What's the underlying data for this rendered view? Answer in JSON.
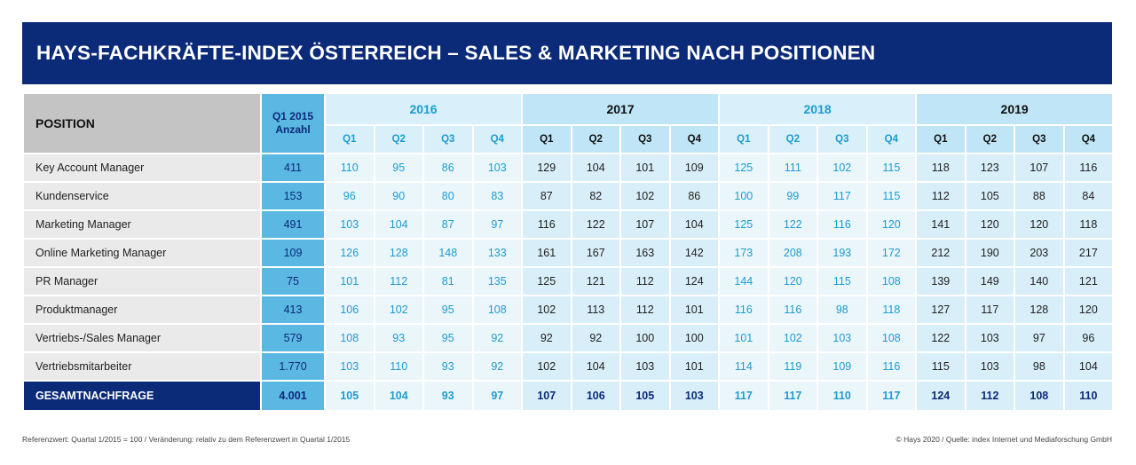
{
  "title": "HAYS-FACHKRÄFTE-INDEX ÖSTERREICH – SALES & MARKETING NACH POSITIONEN",
  "chart_data": {
    "type": "table",
    "header": {
      "position": "POSITION",
      "baseline_line1": "Q1 2015",
      "baseline_line2": "Anzahl",
      "years": [
        "2016",
        "2017",
        "2018",
        "2019"
      ],
      "quarters": [
        "Q1",
        "Q2",
        "Q3",
        "Q4"
      ]
    },
    "rows": [
      {
        "name": "Key Account Manager",
        "base": "411",
        "values": [
          "110",
          "95",
          "86",
          "103",
          "129",
          "104",
          "101",
          "109",
          "125",
          "111",
          "102",
          "115",
          "118",
          "123",
          "107",
          "116"
        ]
      },
      {
        "name": "Kundenservice",
        "base": "153",
        "values": [
          "96",
          "90",
          "80",
          "83",
          "87",
          "82",
          "102",
          "86",
          "100",
          "99",
          "117",
          "115",
          "112",
          "105",
          "88",
          "84"
        ]
      },
      {
        "name": "Marketing Manager",
        "base": "491",
        "values": [
          "103",
          "104",
          "87",
          "97",
          "116",
          "122",
          "107",
          "104",
          "125",
          "122",
          "116",
          "120",
          "141",
          "120",
          "120",
          "118"
        ]
      },
      {
        "name": "Online Marketing Manager",
        "base": "109",
        "values": [
          "126",
          "128",
          "148",
          "133",
          "161",
          "167",
          "163",
          "142",
          "173",
          "208",
          "193",
          "172",
          "212",
          "190",
          "203",
          "217"
        ]
      },
      {
        "name": "PR Manager",
        "base": "75",
        "values": [
          "101",
          "112",
          "81",
          "135",
          "125",
          "121",
          "112",
          "124",
          "144",
          "120",
          "115",
          "108",
          "139",
          "149",
          "140",
          "121"
        ]
      },
      {
        "name": "Produktmanager",
        "base": "413",
        "values": [
          "106",
          "102",
          "95",
          "108",
          "102",
          "113",
          "112",
          "101",
          "116",
          "116",
          "98",
          "118",
          "127",
          "117",
          "128",
          "120"
        ]
      },
      {
        "name": "Vertriebs-/Sales Manager",
        "base": "579",
        "values": [
          "108",
          "93",
          "95",
          "92",
          "92",
          "92",
          "100",
          "100",
          "101",
          "102",
          "103",
          "108",
          "122",
          "103",
          "97",
          "96"
        ]
      },
      {
        "name": "Vertriebsmitarbeiter",
        "base": "1.770",
        "values": [
          "103",
          "110",
          "93",
          "92",
          "102",
          "104",
          "103",
          "101",
          "114",
          "119",
          "109",
          "116",
          "115",
          "103",
          "98",
          "104"
        ]
      }
    ],
    "total": {
      "name": "GESAMTNACHFRAGE",
      "base": "4.001",
      "values": [
        "105",
        "104",
        "93",
        "97",
        "107",
        "106",
        "105",
        "103",
        "117",
        "117",
        "110",
        "117",
        "124",
        "112",
        "108",
        "110"
      ]
    }
  },
  "footer": {
    "left": "Referenzwert: Quartal 1/2015 = 100 / Veränderung: relativ zu dem Referenzwert in Quartal 1/2015",
    "right": "© Hays 2020 / Quelle: index Internet und Mediaforschung GmbH"
  }
}
